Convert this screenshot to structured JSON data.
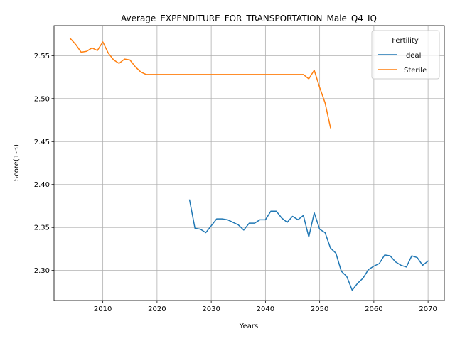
{
  "chart_data": {
    "type": "line",
    "title": "Average_EXPENDITURE_FOR_TRANSPORTATION_Male_Q4_IQ",
    "xlabel": "Years",
    "ylabel": "Score(1-3)",
    "xlim": [
      2001,
      2073
    ],
    "ylim": [
      2.265,
      2.585
    ],
    "xticks": [
      2010,
      2020,
      2030,
      2040,
      2050,
      2060,
      2070
    ],
    "yticks": [
      2.3,
      2.35,
      2.4,
      2.45,
      2.5,
      2.55
    ],
    "xtick_labels": [
      "2010",
      "2020",
      "2030",
      "2040",
      "2050",
      "2060",
      "2070"
    ],
    "ytick_labels": [
      "2.30",
      "2.35",
      "2.40",
      "2.45",
      "2.50",
      "2.55"
    ],
    "grid": true,
    "legend": {
      "title": "Fertility",
      "position": "top-right"
    },
    "series": [
      {
        "name": "Ideal",
        "color": "#1f77b4",
        "x": [
          2026,
          2027,
          2028,
          2029,
          2030,
          2031,
          2032,
          2033,
          2034,
          2035,
          2036,
          2037,
          2038,
          2039,
          2040,
          2041,
          2042,
          2043,
          2044,
          2045,
          2046,
          2047,
          2048,
          2049,
          2050,
          2051,
          2052,
          2053,
          2054,
          2055,
          2056,
          2057,
          2058,
          2059,
          2060,
          2061,
          2062,
          2063,
          2064,
          2065,
          2066,
          2067,
          2068,
          2069,
          2070
        ],
        "values": [
          2.382,
          2.349,
          2.348,
          2.344,
          2.352,
          2.36,
          2.36,
          2.359,
          2.356,
          2.353,
          2.347,
          2.355,
          2.355,
          2.359,
          2.359,
          2.369,
          2.369,
          2.361,
          2.356,
          2.363,
          2.359,
          2.364,
          2.339,
          2.367,
          2.348,
          2.344,
          2.326,
          2.32,
          2.299,
          2.293,
          2.277,
          2.285,
          2.291,
          2.301,
          2.305,
          2.308,
          2.318,
          2.317,
          2.31,
          2.306,
          2.304,
          2.317,
          2.315,
          2.306,
          2.311
        ]
      },
      {
        "name": "Sterile",
        "color": "#ff7f0e",
        "x": [
          2004,
          2005,
          2006,
          2007,
          2008,
          2009,
          2010,
          2011,
          2012,
          2013,
          2014,
          2015,
          2016,
          2017,
          2018,
          2019,
          2020,
          2021,
          2022,
          2023,
          2024,
          2025,
          2026,
          2027,
          2028,
          2029,
          2030,
          2031,
          2032,
          2033,
          2034,
          2035,
          2036,
          2037,
          2038,
          2039,
          2040,
          2041,
          2042,
          2043,
          2044,
          2045,
          2046,
          2047,
          2048,
          2049,
          2050,
          2051,
          2052
        ],
        "values": [
          2.57,
          2.563,
          2.554,
          2.555,
          2.559,
          2.556,
          2.566,
          2.553,
          2.545,
          2.541,
          2.546,
          2.545,
          2.537,
          2.531,
          2.528,
          2.528,
          2.528,
          2.528,
          2.528,
          2.528,
          2.528,
          2.528,
          2.528,
          2.528,
          2.528,
          2.528,
          2.528,
          2.528,
          2.528,
          2.528,
          2.528,
          2.528,
          2.528,
          2.528,
          2.528,
          2.528,
          2.528,
          2.528,
          2.528,
          2.528,
          2.528,
          2.528,
          2.528,
          2.528,
          2.523,
          2.533,
          2.513,
          2.495,
          2.466
        ]
      }
    ]
  }
}
